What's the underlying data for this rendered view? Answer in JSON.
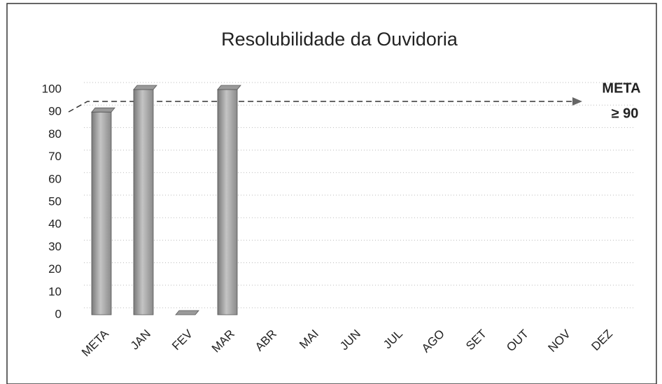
{
  "chart_data": {
    "type": "bar",
    "title": "Resolubilidade da Ouvidoria",
    "categories": [
      "META",
      "JAN",
      "FEV",
      "MAR",
      "ABR",
      "MAI",
      "JUN",
      "JUL",
      "AGO",
      "SET",
      "OUT",
      "NOV",
      "DEZ"
    ],
    "values": [
      90,
      100,
      0,
      100,
      null,
      null,
      null,
      null,
      null,
      null,
      null,
      null,
      null
    ],
    "color": "#a6a6a6",
    "ylim": [
      0,
      100
    ],
    "yticks": [
      0,
      10,
      20,
      30,
      40,
      50,
      60,
      70,
      80,
      90,
      100
    ],
    "grid": true,
    "annotations": [
      "META",
      "≥ 90"
    ]
  }
}
